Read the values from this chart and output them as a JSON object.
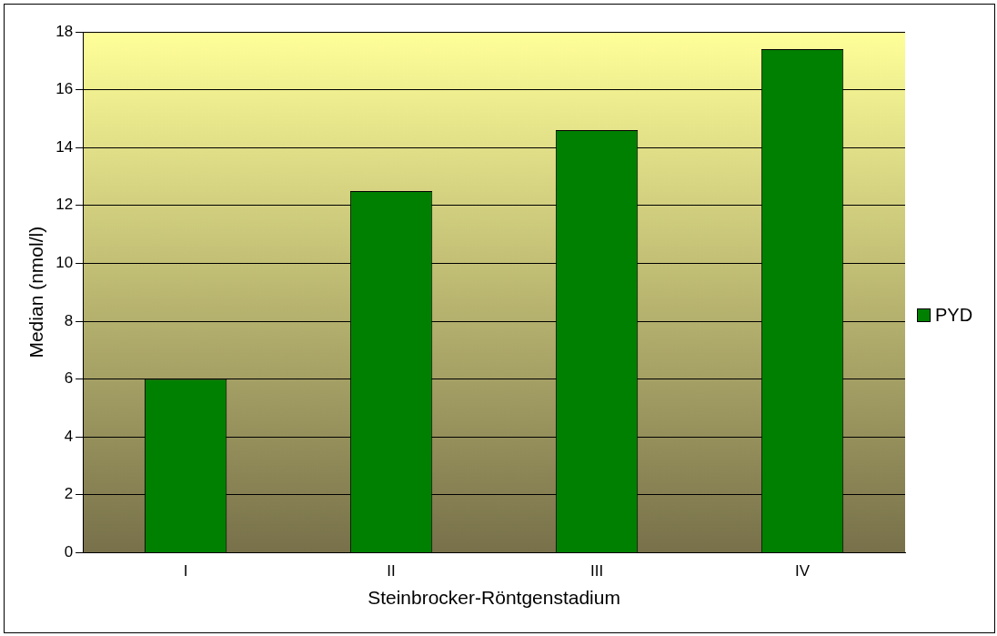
{
  "chart_data": {
    "type": "bar",
    "xlabel": "Steinbrocker-Röntgenstadium",
    "ylabel": "Median (nmol/l)",
    "categories": [
      "I",
      "II",
      "III",
      "IV"
    ],
    "series": [
      {
        "name": "PYD",
        "color": "#008000",
        "values": [
          6.0,
          12.5,
          14.6,
          17.4
        ]
      }
    ],
    "ylim": [
      0,
      18
    ],
    "yticks": [
      0,
      2,
      4,
      6,
      8,
      10,
      12,
      14,
      16,
      18
    ],
    "grid": "y",
    "legend": "right"
  }
}
